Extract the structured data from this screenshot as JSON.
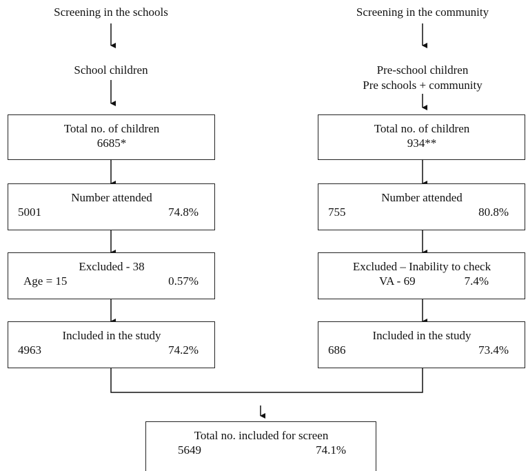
{
  "left": {
    "heading": "Screening in the schools",
    "group": "School children",
    "total": {
      "title": "Total no. of children",
      "value": "6685*"
    },
    "attended": {
      "title": "Number attended",
      "count": "5001",
      "percent": "74.8%"
    },
    "excluded": {
      "title": "Excluded - 38",
      "detail": "Age = 15",
      "percent": "0.57%"
    },
    "included": {
      "title": "Included in the study",
      "count": "4963",
      "percent": "74.2%"
    }
  },
  "right": {
    "heading": "Screening in the community",
    "group_line1": "Pre-school children",
    "group_line2": "Pre schools + community",
    "total": {
      "title": "Total no. of children",
      "value": "934**"
    },
    "attended": {
      "title": "Number attended",
      "count": "755",
      "percent": "80.8%"
    },
    "excluded": {
      "title": "Excluded – Inability to check",
      "detail": "VA - 69",
      "percent": "7.4%"
    },
    "included": {
      "title": "Included in the study",
      "count": "686",
      "percent": "73.4%"
    }
  },
  "final": {
    "title": "Total no. included for screen",
    "count": "5649",
    "percent": "74.1%"
  }
}
